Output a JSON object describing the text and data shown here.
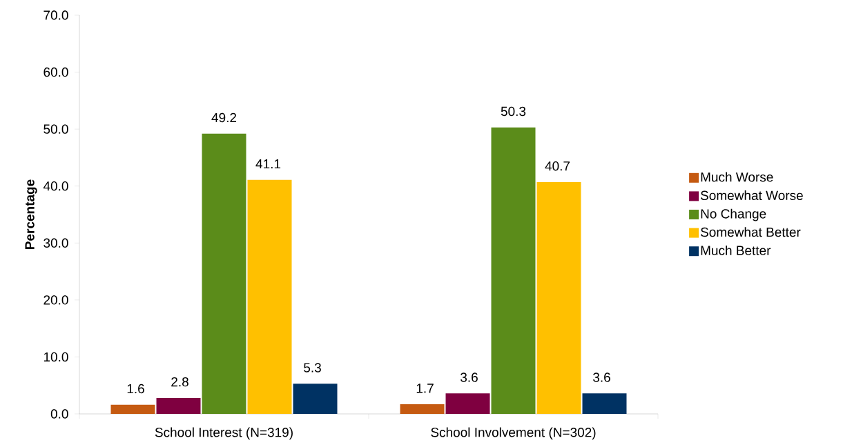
{
  "chart_data": {
    "type": "bar",
    "ylabel": "Percentage",
    "categories": [
      "School Interest (N=319)",
      "School Involvement (N=302)"
    ],
    "series": [
      {
        "name": "Much Worse",
        "color": "#c55a11",
        "values": [
          1.6,
          1.7
        ]
      },
      {
        "name": "Somewhat Worse",
        "color": "#7f0040",
        "values": [
          2.8,
          3.6
        ]
      },
      {
        "name": "No Change",
        "color": "#5b8c1a",
        "values": [
          49.2,
          50.3
        ]
      },
      {
        "name": "Somewhat Better",
        "color": "#ffc000",
        "values": [
          41.1,
          40.7
        ]
      },
      {
        "name": "Much Better",
        "color": "#003263",
        "values": [
          5.3,
          3.6
        ]
      }
    ],
    "ylim": [
      0,
      70
    ],
    "yticks": [
      {
        "value": 0,
        "label": "0.0"
      },
      {
        "value": 10,
        "label": "10.0"
      },
      {
        "value": 20,
        "label": "20.0"
      },
      {
        "value": 30,
        "label": "30.0"
      },
      {
        "value": 40,
        "label": "40.0"
      },
      {
        "value": 50,
        "label": "50.0"
      },
      {
        "value": 60,
        "label": "60.0"
      },
      {
        "value": 70,
        "label": "70.0"
      }
    ],
    "data_labels": true,
    "legend": "right",
    "grid": false
  }
}
